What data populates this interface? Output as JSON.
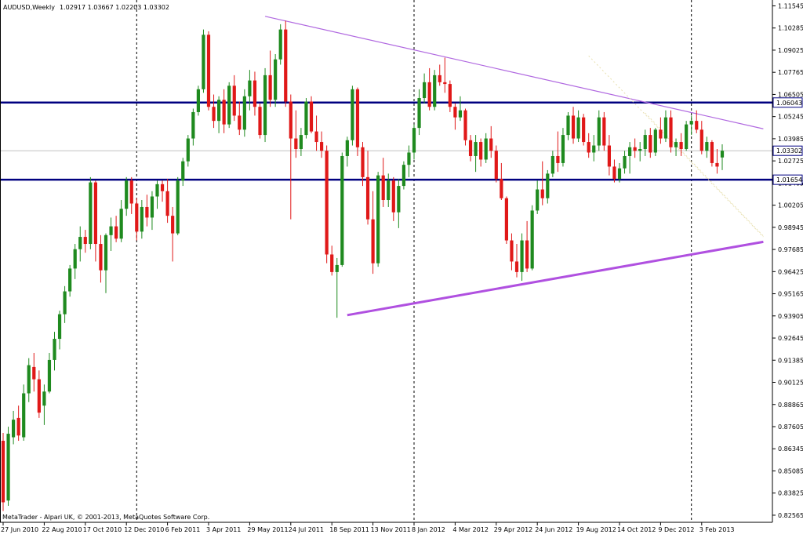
{
  "header": {
    "symbol_label": "AUDUSD,Weekly",
    "ohlc_label": "1.02917 1.03667 1.02203 1.03302"
  },
  "footer": {
    "copyright": "MetaTrader - Alpari UK, © 2001-2013, MetaQuotes Software Corp."
  },
  "price_axis": {
    "ticks": [
      "1.11545",
      "1.10285",
      "1.09025",
      "1.07765",
      "1.06505",
      "1.05245",
      "1.03985",
      "1.02725",
      "1.01465",
      "1.00205",
      "0.98945",
      "0.97685",
      "0.96425",
      "0.95165",
      "0.93905",
      "0.92645",
      "0.91385",
      "0.90125",
      "0.88865",
      "0.87605",
      "0.86345",
      "0.85085",
      "0.83825",
      "0.82565"
    ],
    "current_price_label": "1.03302",
    "resistance_label": "1.06043",
    "support_label": "1.01654"
  },
  "time_axis": {
    "labels": [
      "27 Jun 2010",
      "22 Aug 2010",
      "17 Oct 2010",
      "12 Dec 2010",
      "6 Feb 2011",
      "3 Apr 2011",
      "29 May 2011",
      "24 Jul 2011",
      "18 Sep 2011",
      "13 Nov 2011",
      "8 Jan 2012",
      "4 Mar 2012",
      "29 Apr 2012",
      "24 Jun 2012",
      "19 Aug 2012",
      "14 Oct 2012",
      "9 Dec 2012",
      "3 Feb 2013"
    ]
  },
  "colors": {
    "bull": "#1f8a1f",
    "bear": "#e01818",
    "support_resistance": "#000080",
    "trendline": "#b050e0",
    "trendline_upper": "#b068e0",
    "separator": "#000000",
    "current_price_line": "#c0c0c0"
  },
  "chart_data": {
    "type": "candlestick",
    "symbol": "AUDUSD",
    "timeframe": "Weekly",
    "last_bar": {
      "open": 1.02917,
      "high": 1.03667,
      "low": 1.02203,
      "close": 1.03302
    },
    "ylim": [
      0.8225,
      1.117
    ],
    "x_index_range": [
      0,
      145
    ],
    "horizontal_lines": [
      1.06043,
      1.01654
    ],
    "trendlines": [
      {
        "name": "upper",
        "points": [
          [
            51,
            1.1095
          ],
          [
            148,
            1.0455
          ]
        ]
      },
      {
        "name": "lower",
        "points": [
          [
            67,
            0.9395
          ],
          [
            148,
            0.9812
          ]
        ]
      },
      {
        "name": "upper-dotted",
        "points": [
          [
            114,
            1.087
          ],
          [
            148,
            0.984
          ]
        ]
      },
      {
        "name": "lower-dotted",
        "points": [
          [
            125,
            1.0545
          ],
          [
            148,
            0.9845
          ]
        ]
      }
    ],
    "separators_x": [
      26,
      80,
      134
    ],
    "grid": false,
    "candles": [
      [
        0.868,
        0.8725,
        0.828,
        0.833
      ],
      [
        0.834,
        0.876,
        0.831,
        0.872
      ],
      [
        0.87,
        0.885,
        0.866,
        0.88
      ],
      [
        0.881,
        0.888,
        0.868,
        0.871
      ],
      [
        0.87,
        0.9,
        0.868,
        0.895
      ],
      [
        0.895,
        0.915,
        0.89,
        0.911
      ],
      [
        0.91,
        0.918,
        0.896,
        0.903
      ],
      [
        0.903,
        0.908,
        0.881,
        0.884
      ],
      [
        0.888,
        0.9,
        0.877,
        0.896
      ],
      [
        0.896,
        0.918,
        0.895,
        0.914
      ],
      [
        0.914,
        0.93,
        0.908,
        0.926
      ],
      [
        0.926,
        0.942,
        0.92,
        0.94
      ],
      [
        0.94,
        0.956,
        0.935,
        0.953
      ],
      [
        0.953,
        0.968,
        0.95,
        0.966
      ],
      [
        0.966,
        0.98,
        0.96,
        0.977
      ],
      [
        0.977,
        0.99,
        0.97,
        0.984
      ],
      [
        0.984,
        0.988,
        0.975,
        0.98
      ],
      [
        0.98,
        1.018,
        0.977,
        1.015
      ],
      [
        1.015,
        1.016,
        0.97,
        0.98
      ],
      [
        0.98,
        0.985,
        0.958,
        0.965
      ],
      [
        0.965,
        0.986,
        0.952,
        0.985
      ],
      [
        0.985,
        0.995,
        0.976,
        0.99
      ],
      [
        0.99,
        0.996,
        0.981,
        0.983
      ],
      [
        0.983,
        1.005,
        0.981,
        1.0
      ],
      [
        1.0,
        1.018,
        0.996,
        1.016
      ],
      [
        1.016,
        1.018,
        0.997,
        1.003
      ],
      [
        1.003,
        1.006,
        0.982,
        0.987
      ],
      [
        0.987,
        1.005,
        0.983,
        1.001
      ],
      [
        1.001,
        1.008,
        0.99,
        0.995
      ],
      [
        0.995,
        1.01,
        0.988,
        1.007
      ],
      [
        1.007,
        1.016,
        1.0,
        1.014
      ],
      [
        1.014,
        1.016,
        1.004,
        1.01
      ],
      [
        1.01,
        1.017,
        0.992,
        0.996
      ],
      [
        0.996,
        1.001,
        0.97,
        0.986
      ],
      [
        0.986,
        1.018,
        0.985,
        1.016
      ],
      [
        1.016,
        1.029,
        1.013,
        1.027
      ],
      [
        1.027,
        1.042,
        1.024,
        1.04
      ],
      [
        1.04,
        1.057,
        1.036,
        1.055
      ],
      [
        1.055,
        1.07,
        1.053,
        1.068
      ],
      [
        1.068,
        1.102,
        1.066,
        1.099
      ],
      [
        1.099,
        1.101,
        1.056,
        1.058
      ],
      [
        1.058,
        1.065,
        1.046,
        1.05
      ],
      [
        1.05,
        1.064,
        1.043,
        1.062
      ],
      [
        1.062,
        1.068,
        1.043,
        1.048
      ],
      [
        1.048,
        1.072,
        1.046,
        1.07
      ],
      [
        1.07,
        1.076,
        1.05,
        1.053
      ],
      [
        1.053,
        1.061,
        1.042,
        1.045
      ],
      [
        1.045,
        1.068,
        1.041,
        1.064
      ],
      [
        1.064,
        1.079,
        1.056,
        1.073
      ],
      [
        1.073,
        1.078,
        1.053,
        1.058
      ],
      [
        1.058,
        1.06,
        1.04,
        1.042
      ],
      [
        1.042,
        1.08,
        1.038,
        1.076
      ],
      [
        1.076,
        1.09,
        1.058,
        1.062
      ],
      [
        1.062,
        1.088,
        1.058,
        1.085
      ],
      [
        1.085,
        1.105,
        1.082,
        1.102
      ],
      [
        1.102,
        1.107,
        1.058,
        1.061
      ],
      [
        1.061,
        1.065,
        0.994,
        1.04
      ],
      [
        1.04,
        1.056,
        1.029,
        1.034
      ],
      [
        1.034,
        1.046,
        1.03,
        1.042
      ],
      [
        1.042,
        1.063,
        1.04,
        1.061
      ],
      [
        1.061,
        1.064,
        1.043,
        1.044
      ],
      [
        1.044,
        1.053,
        1.033,
        1.038
      ],
      [
        1.038,
        1.044,
        1.029,
        1.033
      ],
      [
        1.033,
        1.036,
        0.969,
        0.974
      ],
      [
        0.974,
        0.979,
        0.962,
        0.964
      ],
      [
        0.964,
        0.972,
        0.938,
        0.968
      ],
      [
        0.968,
        1.032,
        0.967,
        1.03
      ],
      [
        1.03,
        1.041,
        1.024,
        1.039
      ],
      [
        1.039,
        1.07,
        1.036,
        1.068
      ],
      [
        1.068,
        1.069,
        1.03,
        1.035
      ],
      [
        1.035,
        1.038,
        1.013,
        1.018
      ],
      [
        1.018,
        1.033,
        0.991,
        0.994
      ],
      [
        0.994,
        1.01,
        0.963,
        0.969
      ],
      [
        0.969,
        1.021,
        0.967,
        1.019
      ],
      [
        1.019,
        1.029,
        1.001,
        1.005
      ],
      [
        1.005,
        1.02,
        1.001,
        1.016
      ],
      [
        1.016,
        1.018,
        0.993,
        0.998
      ],
      [
        0.998,
        1.017,
        0.989,
        1.013
      ],
      [
        1.013,
        1.027,
        1.011,
        1.025
      ],
      [
        1.025,
        1.036,
        1.018,
        1.032
      ],
      [
        1.032,
        1.048,
        1.028,
        1.046
      ],
      [
        1.046,
        1.068,
        1.042,
        1.063
      ],
      [
        1.063,
        1.077,
        1.06,
        1.072
      ],
      [
        1.072,
        1.08,
        1.056,
        1.058
      ],
      [
        1.058,
        1.079,
        1.056,
        1.076
      ],
      [
        1.076,
        1.082,
        1.07,
        1.072
      ],
      [
        1.072,
        1.086,
        1.066,
        1.071
      ],
      [
        1.071,
        1.073,
        1.055,
        1.058
      ],
      [
        1.058,
        1.06,
        1.045,
        1.052
      ],
      [
        1.052,
        1.064,
        1.05,
        1.056
      ],
      [
        1.056,
        1.057,
        1.036,
        1.039
      ],
      [
        1.039,
        1.042,
        1.027,
        1.03
      ],
      [
        1.03,
        1.042,
        1.021,
        1.038
      ],
      [
        1.038,
        1.04,
        1.024,
        1.028
      ],
      [
        1.028,
        1.043,
        1.026,
        1.04
      ],
      [
        1.04,
        1.047,
        1.029,
        1.033
      ],
      [
        1.033,
        1.036,
        1.015,
        1.017
      ],
      [
        1.017,
        1.026,
        1.005,
        1.006
      ],
      [
        1.006,
        1.007,
        0.98,
        0.982
      ],
      [
        0.982,
        0.986,
        0.965,
        0.97
      ],
      [
        0.97,
        0.98,
        0.961,
        0.964
      ],
      [
        0.964,
        0.986,
        0.959,
        0.982
      ],
      [
        0.982,
        0.993,
        0.964,
        0.966
      ],
      [
        0.966,
        1.002,
        0.965,
        0.999
      ],
      [
        0.999,
        1.016,
        0.997,
        1.011
      ],
      [
        1.011,
        1.027,
        1.002,
        1.006
      ],
      [
        1.006,
        1.022,
        1.003,
        1.02
      ],
      [
        1.02,
        1.033,
        1.018,
        1.03
      ],
      [
        1.03,
        1.044,
        1.021,
        1.026
      ],
      [
        1.026,
        1.046,
        1.024,
        1.042
      ],
      [
        1.042,
        1.055,
        1.039,
        1.053
      ],
      [
        1.053,
        1.058,
        1.037,
        1.04
      ],
      [
        1.04,
        1.056,
        1.038,
        1.052
      ],
      [
        1.052,
        1.054,
        1.036,
        1.038
      ],
      [
        1.038,
        1.043,
        1.029,
        1.032
      ],
      [
        1.032,
        1.042,
        1.027,
        1.036
      ],
      [
        1.036,
        1.056,
        1.033,
        1.052
      ],
      [
        1.052,
        1.055,
        1.033,
        1.036
      ],
      [
        1.036,
        1.042,
        1.019,
        1.024
      ],
      [
        1.024,
        1.028,
        1.015,
        1.017
      ],
      [
        1.017,
        1.026,
        1.015,
        1.023
      ],
      [
        1.023,
        1.033,
        1.02,
        1.03
      ],
      [
        1.03,
        1.038,
        1.02,
        1.035
      ],
      [
        1.035,
        1.04,
        1.029,
        1.033
      ],
      [
        1.033,
        1.038,
        1.027,
        1.034
      ],
      [
        1.034,
        1.045,
        1.03,
        1.042
      ],
      [
        1.042,
        1.046,
        1.029,
        1.032
      ],
      [
        1.032,
        1.046,
        1.03,
        1.045
      ],
      [
        1.045,
        1.052,
        1.037,
        1.04
      ],
      [
        1.04,
        1.056,
        1.038,
        1.052
      ],
      [
        1.052,
        1.056,
        1.032,
        1.035
      ],
      [
        1.035,
        1.04,
        1.03,
        1.038
      ],
      [
        1.038,
        1.043,
        1.03,
        1.034
      ],
      [
        1.034,
        1.05,
        1.033,
        1.048
      ],
      [
        1.048,
        1.053,
        1.042,
        1.05
      ],
      [
        1.05,
        1.056,
        1.043,
        1.045
      ],
      [
        1.045,
        1.05,
        1.031,
        1.033
      ],
      [
        1.033,
        1.041,
        1.029,
        1.038
      ],
      [
        1.038,
        1.039,
        1.024,
        1.026
      ],
      [
        1.026,
        1.034,
        1.02,
        1.024
      ],
      [
        1.0292,
        1.0367,
        1.022,
        1.033
      ]
    ]
  }
}
